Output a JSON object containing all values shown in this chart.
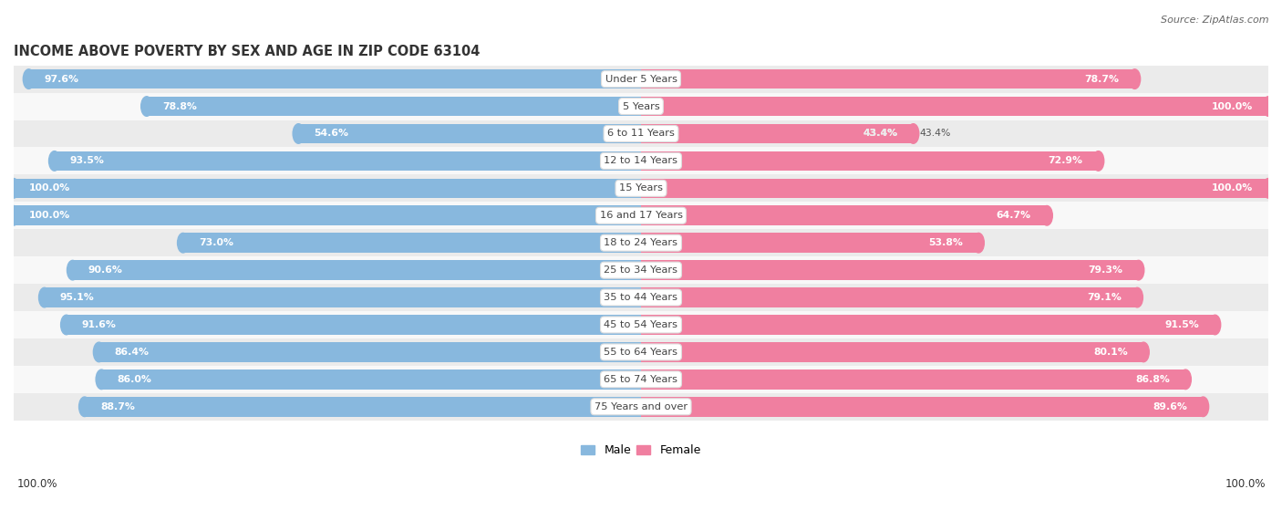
{
  "title": "INCOME ABOVE POVERTY BY SEX AND AGE IN ZIP CODE 63104",
  "source": "Source: ZipAtlas.com",
  "categories": [
    "Under 5 Years",
    "5 Years",
    "6 to 11 Years",
    "12 to 14 Years",
    "15 Years",
    "16 and 17 Years",
    "18 to 24 Years",
    "25 to 34 Years",
    "35 to 44 Years",
    "45 to 54 Years",
    "55 to 64 Years",
    "65 to 74 Years",
    "75 Years and over"
  ],
  "male_values": [
    97.6,
    78.8,
    54.6,
    93.5,
    100.0,
    100.0,
    73.0,
    90.6,
    95.1,
    91.6,
    86.4,
    86.0,
    88.7
  ],
  "female_values": [
    78.7,
    100.0,
    43.4,
    72.9,
    100.0,
    64.7,
    53.8,
    79.3,
    79.1,
    91.5,
    80.1,
    86.8,
    89.6
  ],
  "male_color": "#88b8de",
  "female_color": "#f07fa0",
  "male_label": "Male",
  "female_label": "Female",
  "row_colors": [
    "#ebebeb",
    "#f8f8f8"
  ],
  "title_fontsize": 10.5,
  "source_fontsize": 8,
  "footnote_left": "100.0%",
  "footnote_right": "100.0%"
}
